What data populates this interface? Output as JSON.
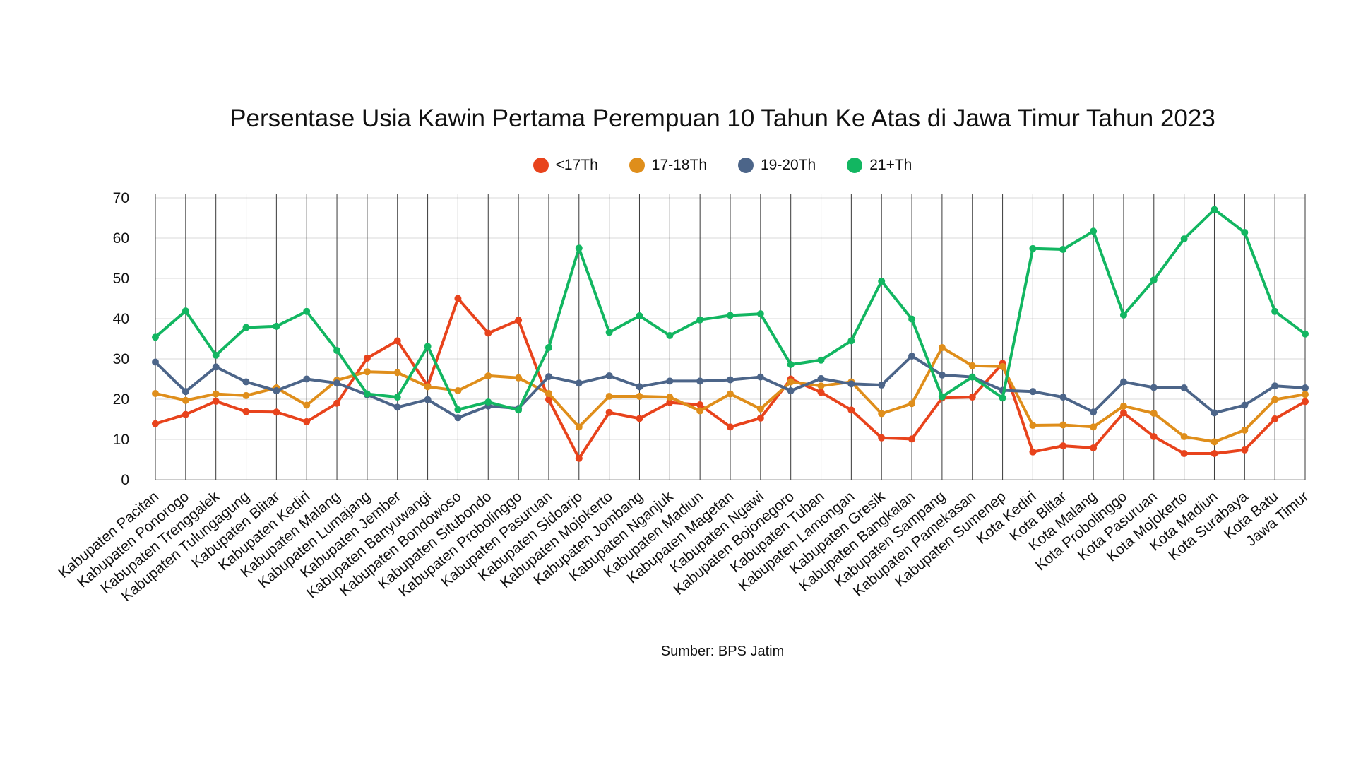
{
  "chart_data": {
    "type": "line",
    "title": "Persentase Usia Kawin Pertama Perempuan 10 Tahun Ke Atas di Jawa Timur Tahun 2023",
    "source": "Sumber: BPS Jatim",
    "ylim": [
      0,
      70
    ],
    "yticks": [
      0,
      10,
      20,
      30,
      40,
      50,
      60,
      70
    ],
    "grid": true,
    "legend": "top",
    "categories": [
      "Kabupaten Pacitan",
      "Kabupaten Ponorogo",
      "Kabupaten Trenggalek",
      "Kabupaten Tulungagung",
      "Kabupaten Blitar",
      "Kabupaten Kediri",
      "Kabupaten Malang",
      "Kabupaten Lumajang",
      "Kabupaten Jember",
      "Kabupaten Banyuwangi",
      "Kabupaten Bondowoso",
      "Kabupaten Situbondo",
      "Kabupaten Probolinggo",
      "Kabupaten Pasuruan",
      "Kabupaten Sidoarjo",
      "Kabupaten Mojokerto",
      "Kabupaten Jombang",
      "Kabupaten Nganjuk",
      "Kabupaten Madiun",
      "Kabupaten Magetan",
      "Kabupaten Ngawi",
      "Kabupaten Bojonegoro",
      "Kabupaten Tuban",
      "Kabupaten Lamongan",
      "Kabupaten Gresik",
      "Kabupaten Bangkalan",
      "Kabupaten Sampang",
      "Kabupaten Pamekasan",
      "Kabupaten Sumenep",
      "Kota Kediri",
      "Kota Blitar",
      "Kota Malang",
      "Kota Probolinggo",
      "Kota Pasuruan",
      "Kota Mojokerto",
      "Kota Madiun",
      "Kota Surabaya",
      "Kota Batu",
      "Jawa Timur"
    ],
    "series": [
      {
        "name": "<17Th",
        "color": "#e8431c",
        "values": [
          13.9,
          16.2,
          19.5,
          16.9,
          16.8,
          14.4,
          19.0,
          30.2,
          34.5,
          23.3,
          45.0,
          36.4,
          39.6,
          19.9,
          5.3,
          16.7,
          15.2,
          19.2,
          18.6,
          13.1,
          15.3,
          25.0,
          21.7,
          17.3,
          10.4,
          10.1,
          20.3,
          20.5,
          28.9,
          6.9,
          8.4,
          7.9,
          16.6,
          10.7,
          6.5,
          6.5,
          7.4,
          15.1,
          19.4
        ]
      },
      {
        "name": "17-18Th",
        "color": "#df8e1b",
        "values": [
          21.4,
          19.7,
          21.3,
          20.9,
          22.8,
          18.5,
          24.7,
          26.8,
          26.6,
          23.1,
          22.1,
          25.8,
          25.3,
          21.4,
          13.1,
          20.7,
          20.7,
          20.5,
          17.1,
          21.3,
          17.6,
          24.3,
          23.3,
          24.3,
          16.4,
          18.9,
          32.8,
          28.3,
          28.1,
          13.5,
          13.6,
          13.1,
          18.3,
          16.5,
          10.7,
          9.4,
          12.3,
          19.9,
          21.2
        ]
      },
      {
        "name": "19-20Th",
        "color": "#4c6589",
        "values": [
          29.2,
          21.9,
          28.0,
          24.3,
          22.1,
          25.0,
          24.0,
          21.1,
          18.0,
          19.9,
          15.4,
          18.3,
          17.7,
          25.6,
          24.0,
          25.8,
          23.1,
          24.5,
          24.5,
          24.8,
          25.5,
          22.1,
          25.1,
          23.8,
          23.5,
          30.7,
          26.0,
          25.5,
          22.2,
          21.9,
          20.5,
          16.8,
          24.3,
          22.9,
          22.8,
          16.6,
          18.5,
          23.3,
          22.8
        ]
      },
      {
        "name": "21+Th",
        "color": "#12b661",
        "values": [
          35.4,
          41.9,
          30.9,
          37.8,
          38.1,
          41.8,
          32.1,
          21.3,
          20.5,
          33.1,
          17.4,
          19.3,
          17.3,
          32.8,
          57.5,
          36.6,
          40.7,
          35.8,
          39.7,
          40.8,
          41.2,
          28.6,
          29.7,
          34.5,
          49.3,
          39.9,
          20.6,
          25.5,
          20.3,
          57.4,
          57.2,
          61.7,
          40.9,
          49.6,
          59.8,
          67.1,
          61.4,
          41.8,
          36.2
        ]
      }
    ]
  }
}
